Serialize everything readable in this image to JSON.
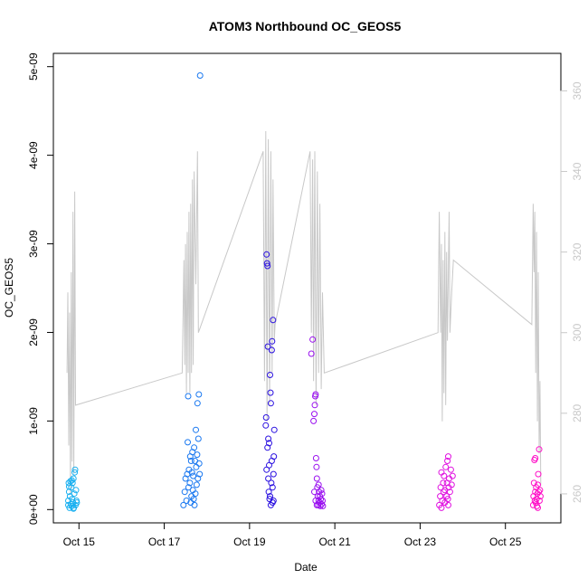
{
  "chart_data": {
    "type": "scatter",
    "title": "ATOM3 Northbound OC_GEOS5",
    "xlabel": "Date",
    "ylabel": "OC_GEOS5",
    "x_ticks": [
      {
        "day": 15,
        "label": "Oct 15"
      },
      {
        "day": 17,
        "label": "Oct 17"
      },
      {
        "day": 19,
        "label": "Oct 19"
      },
      {
        "day": 21,
        "label": "Oct 21"
      },
      {
        "day": 23,
        "label": "Oct 23"
      },
      {
        "day": 25,
        "label": "Oct 25"
      }
    ],
    "y_ticks": [
      {
        "value": 0,
        "label": "0e+00"
      },
      {
        "value": 1e-09,
        "label": "1e-09"
      },
      {
        "value": 2e-09,
        "label": "2e-09"
      },
      {
        "value": 3e-09,
        "label": "3e-09"
      },
      {
        "value": 4e-09,
        "label": "4e-09"
      },
      {
        "value": 5e-09,
        "label": "5e-09"
      }
    ],
    "y2_ticks": [
      {
        "value": 260,
        "label": "260"
      },
      {
        "value": 280,
        "label": "280"
      },
      {
        "value": 300,
        "label": "300"
      },
      {
        "value": 320,
        "label": "320"
      },
      {
        "value": 340,
        "label": "340"
      },
      {
        "value": 360,
        "label": "360"
      }
    ],
    "xlim": [
      14.4,
      26.3
    ],
    "ylim": [
      -1.5e-10,
      5.15e-09
    ],
    "y2lim": [
      252.8,
      369.3
    ],
    "colors": {
      "flight1": "#1ab0f0",
      "flight2": "#1a78f0",
      "flight3": "#2a10e0",
      "flight4": "#9a10f0",
      "flight5": "#e010e0",
      "flight6": "#ff10c8",
      "secondary_line": "#c8c8c8",
      "axis": "#000000"
    },
    "scatter_series": [
      {
        "color_key": "flight1",
        "points": [
          [
            14.75,
            5e-11
          ],
          [
            14.75,
            1e-10
          ],
          [
            14.76,
            3e-10
          ],
          [
            14.77,
            2e-10
          ],
          [
            14.78,
            2e-11
          ],
          [
            14.79,
            1.5e-10
          ],
          [
            14.8,
            3.2e-10
          ],
          [
            14.81,
            6e-11
          ],
          [
            14.82,
            2.5e-10
          ],
          [
            14.83,
            4e-11
          ],
          [
            14.84,
            1.2e-10
          ],
          [
            14.85,
            3e-10
          ],
          [
            14.86,
            8e-11
          ],
          [
            14.87,
            3.5e-10
          ],
          [
            14.88,
            2e-11
          ],
          [
            14.89,
            1.8e-10
          ],
          [
            14.9,
            4.2e-10
          ],
          [
            14.91,
            4.5e-10
          ],
          [
            14.92,
            5e-11
          ],
          [
            14.93,
            2.2e-10
          ],
          [
            14.94,
            1e-10
          ],
          [
            14.95,
            8e-11
          ],
          [
            14.77,
            2.6e-10
          ],
          [
            14.83,
            3.3e-10
          ],
          [
            14.87,
            1e-11
          ]
        ]
      },
      {
        "color_key": "flight2",
        "points": [
          [
            17.45,
            5e-11
          ],
          [
            17.48,
            2e-10
          ],
          [
            17.5,
            3.5e-10
          ],
          [
            17.52,
            1e-10
          ],
          [
            17.54,
            4e-10
          ],
          [
            17.55,
            7.6e-10
          ],
          [
            17.56,
            1.28e-09
          ],
          [
            17.57,
            2.5e-10
          ],
          [
            17.58,
            4.5e-10
          ],
          [
            17.6,
            3e-10
          ],
          [
            17.62,
            8e-11
          ],
          [
            17.63,
            5.5e-10
          ],
          [
            17.64,
            1.5e-10
          ],
          [
            17.65,
            4.2e-10
          ],
          [
            17.66,
            6.5e-10
          ],
          [
            17.67,
            2.2e-10
          ],
          [
            17.68,
            3.8e-10
          ],
          [
            17.7,
            7e-10
          ],
          [
            17.71,
            5e-11
          ],
          [
            17.72,
            5.5e-10
          ],
          [
            17.73,
            1.8e-10
          ],
          [
            17.74,
            9e-10
          ],
          [
            17.75,
            4.8e-10
          ],
          [
            17.76,
            2.8e-10
          ],
          [
            17.77,
            6.2e-10
          ],
          [
            17.78,
            1.2e-09
          ],
          [
            17.79,
            3.5e-10
          ],
          [
            17.8,
            8e-10
          ],
          [
            17.81,
            1.3e-09
          ],
          [
            17.82,
            5.2e-10
          ],
          [
            17.83,
            4e-10
          ],
          [
            17.84,
            4.9e-09
          ],
          [
            17.61,
            6e-10
          ],
          [
            17.69,
            1.2e-10
          ]
        ]
      },
      {
        "color_key": "flight3",
        "points": [
          [
            19.4,
            2.88e-09
          ],
          [
            19.41,
            2.78e-09
          ],
          [
            19.42,
            2.75e-09
          ],
          [
            19.38,
            9.5e-10
          ],
          [
            19.39,
            1.04e-09
          ],
          [
            19.43,
            1.84e-09
          ],
          [
            19.44,
            8e-10
          ],
          [
            19.45,
            2e-10
          ],
          [
            19.46,
            5e-10
          ],
          [
            19.47,
            1.2e-10
          ],
          [
            19.48,
            1.52e-09
          ],
          [
            19.49,
            1.32e-09
          ],
          [
            19.5,
            1.2e-09
          ],
          [
            19.51,
            3e-10
          ],
          [
            19.52,
            1.8e-09
          ],
          [
            19.53,
            1.9e-09
          ],
          [
            19.54,
            8e-11
          ],
          [
            19.55,
            2.14e-09
          ],
          [
            19.56,
            4e-10
          ],
          [
            19.57,
            6e-10
          ],
          [
            19.42,
            7e-10
          ],
          [
            19.44,
            3.5e-10
          ],
          [
            19.46,
            7.5e-10
          ],
          [
            19.48,
            1.5e-10
          ],
          [
            19.5,
            5e-11
          ],
          [
            19.52,
            5.5e-10
          ],
          [
            19.54,
            2.5e-10
          ],
          [
            19.56,
            1e-10
          ],
          [
            19.4,
            4.5e-10
          ],
          [
            19.58,
            9e-10
          ]
        ]
      },
      {
        "color_key": "flight4",
        "points": [
          [
            20.45,
            1.76e-09
          ],
          [
            20.48,
            1.92e-09
          ],
          [
            20.5,
            1e-09
          ],
          [
            20.52,
            1.08e-09
          ],
          [
            20.53,
            1.18e-09
          ],
          [
            20.54,
            1.28e-09
          ],
          [
            20.55,
            1.3e-09
          ],
          [
            20.56,
            5.8e-10
          ],
          [
            20.57,
            4.8e-10
          ],
          [
            20.58,
            3.5e-10
          ],
          [
            20.59,
            2.5e-10
          ],
          [
            20.6,
            1.5e-10
          ],
          [
            20.61,
            5e-11
          ],
          [
            20.62,
            1e-10
          ],
          [
            20.63,
            2e-10
          ],
          [
            20.64,
            8e-11
          ],
          [
            20.65,
            1.5e-10
          ],
          [
            20.66,
            4e-11
          ],
          [
            20.67,
            1.2e-10
          ],
          [
            20.68,
            2.2e-10
          ],
          [
            20.69,
            6e-11
          ],
          [
            20.7,
            1.8e-10
          ],
          [
            20.71,
            1e-10
          ],
          [
            20.72,
            4e-11
          ],
          [
            20.52,
            2e-10
          ],
          [
            20.55,
            1e-10
          ],
          [
            20.58,
            5e-11
          ],
          [
            20.62,
            2.8e-10
          ]
        ]
      },
      {
        "color_key": "flight5",
        "points": [
          [
            23.45,
            5e-11
          ],
          [
            23.47,
            1.5e-10
          ],
          [
            23.48,
            2.5e-10
          ],
          [
            23.5,
            4.2e-10
          ],
          [
            23.52,
            1e-10
          ],
          [
            23.54,
            3e-10
          ],
          [
            23.55,
            2e-10
          ],
          [
            23.56,
            3.8e-10
          ],
          [
            23.58,
            8e-11
          ],
          [
            23.6,
            4.8e-10
          ],
          [
            23.62,
            1.5e-10
          ],
          [
            23.63,
            3e-10
          ],
          [
            23.64,
            5.5e-10
          ],
          [
            23.65,
            1.2e-10
          ],
          [
            23.66,
            6e-10
          ],
          [
            23.67,
            2.5e-10
          ],
          [
            23.68,
            3.5e-10
          ],
          [
            23.7,
            2e-10
          ],
          [
            23.72,
            4.5e-10
          ],
          [
            23.74,
            2.8e-10
          ],
          [
            23.76,
            3.8e-10
          ],
          [
            23.5,
            2e-11
          ],
          [
            23.58,
            2.2e-10
          ],
          [
            23.66,
            5e-11
          ]
        ]
      },
      {
        "color_key": "flight6",
        "points": [
          [
            25.65,
            5e-11
          ],
          [
            25.66,
            1.5e-10
          ],
          [
            25.67,
            3e-10
          ],
          [
            25.68,
            5.6e-10
          ],
          [
            25.69,
            1e-10
          ],
          [
            25.7,
            2e-10
          ],
          [
            25.71,
            8e-11
          ],
          [
            25.72,
            2.5e-10
          ],
          [
            25.73,
            1.2e-10
          ],
          [
            25.74,
            4e-11
          ],
          [
            25.75,
            1.8e-10
          ],
          [
            25.76,
            2.8e-10
          ],
          [
            25.77,
            4e-10
          ],
          [
            25.78,
            2e-10
          ],
          [
            25.79,
            6.8e-10
          ],
          [
            25.8,
            1e-10
          ],
          [
            25.81,
            2.2e-10
          ],
          [
            25.82,
            1.5e-10
          ],
          [
            25.7,
            5.8e-10
          ],
          [
            25.76,
            2e-11
          ]
        ]
      }
    ],
    "secondary_line": {
      "color_key": "secondary_line",
      "points": [
        [
          14.72,
          290
        ],
        [
          14.74,
          310
        ],
        [
          14.76,
          272
        ],
        [
          14.78,
          305
        ],
        [
          14.8,
          260
        ],
        [
          14.82,
          315
        ],
        [
          14.84,
          268
        ],
        [
          14.86,
          330
        ],
        [
          14.88,
          265
        ],
        [
          14.9,
          335
        ],
        [
          14.92,
          282
        ],
        [
          17.42,
          290
        ],
        [
          17.46,
          318
        ],
        [
          17.48,
          292
        ],
        [
          17.5,
          322
        ],
        [
          17.52,
          285
        ],
        [
          17.54,
          325
        ],
        [
          17.56,
          290
        ],
        [
          17.58,
          330
        ],
        [
          17.6,
          285
        ],
        [
          17.62,
          332
        ],
        [
          17.64,
          290
        ],
        [
          17.66,
          338
        ],
        [
          17.68,
          292
        ],
        [
          17.7,
          340
        ],
        [
          17.74,
          312
        ],
        [
          17.78,
          345
        ],
        [
          17.8,
          300
        ],
        [
          19.32,
          345
        ],
        [
          19.35,
          288
        ],
        [
          19.38,
          350
        ],
        [
          19.41,
          278
        ],
        [
          19.44,
          348
        ],
        [
          19.47,
          282
        ],
        [
          19.5,
          345
        ],
        [
          19.53,
          290
        ],
        [
          19.55,
          338
        ],
        [
          19.58,
          298
        ],
        [
          19.6,
          302
        ],
        [
          20.42,
          345
        ],
        [
          20.45,
          300
        ],
        [
          20.48,
          343
        ],
        [
          20.5,
          288
        ],
        [
          20.53,
          345
        ],
        [
          20.56,
          282
        ],
        [
          20.59,
          340
        ],
        [
          20.62,
          290
        ],
        [
          20.65,
          332
        ],
        [
          20.68,
          286
        ],
        [
          20.71,
          310
        ],
        [
          20.75,
          290
        ],
        [
          23.42,
          300
        ],
        [
          23.45,
          330
        ],
        [
          23.48,
          300
        ],
        [
          23.5,
          322
        ],
        [
          23.52,
          278
        ],
        [
          23.54,
          318
        ],
        [
          23.56,
          285
        ],
        [
          23.58,
          325
        ],
        [
          23.6,
          282
        ],
        [
          23.62,
          320
        ],
        [
          23.64,
          298
        ],
        [
          23.68,
          330
        ],
        [
          23.7,
          300
        ],
        [
          23.74,
          310
        ],
        [
          23.78,
          318
        ],
        [
          25.62,
          302
        ],
        [
          25.65,
          332
        ],
        [
          25.67,
          315
        ],
        [
          25.69,
          330
        ],
        [
          25.71,
          290
        ],
        [
          25.73,
          325
        ],
        [
          25.75,
          278
        ],
        [
          25.77,
          315
        ],
        [
          25.79,
          270
        ],
        [
          25.81,
          288
        ],
        [
          25.83,
          262
        ]
      ]
    }
  }
}
